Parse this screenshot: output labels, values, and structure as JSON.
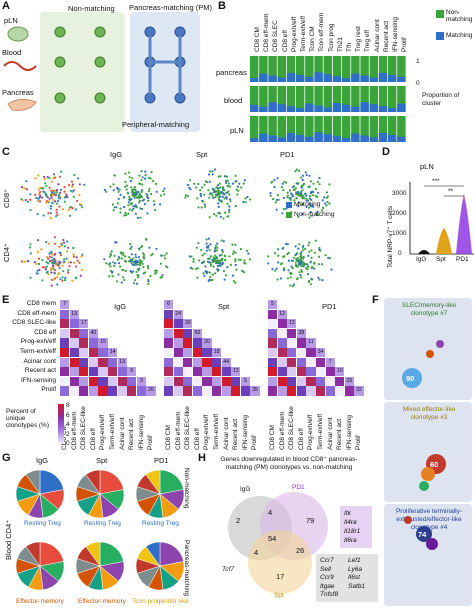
{
  "panels": {
    "A": {
      "letter": "A",
      "tissues": [
        "pLN",
        "Blood",
        "Pancreas"
      ],
      "groups": [
        "Non-matching",
        "Pancreas-matching (PM)",
        "Peripheral-matching"
      ]
    },
    "B": {
      "letter": "B",
      "columns": [
        "CD8 CM",
        "CD8 eff-mem",
        "CD8 SLEC",
        "CD8 eff",
        "Prog-exh/eff",
        "Term-exh/eff",
        "Tcon CM",
        "Tcon eff-mem",
        "Tcon prog",
        "Th21",
        "Tfh",
        "Treg rest",
        "Treg eff",
        "Acinar cont",
        "Recent act",
        "IFN-sensing",
        "Prolif"
      ],
      "rows": [
        "pancreas",
        "blood",
        "pLN"
      ],
      "legend": [
        "Non-matching",
        "Matching"
      ],
      "axis_label": "Proportion of cluster",
      "ticks": [
        "0",
        "1"
      ],
      "colors": {
        "non_matching": "#3aa33a",
        "matching": "#2f6fc8"
      }
    },
    "C": {
      "letter": "C",
      "rows": [
        "CD8⁺",
        "CD4⁺"
      ],
      "columns": [
        "IgG",
        "Spt",
        "PD1"
      ],
      "legend": [
        "Matching",
        "Non-matching"
      ]
    },
    "D": {
      "letter": "D",
      "title": "pLN",
      "ylabel": "Total NRP-v7⁺ T cells",
      "yticks": [
        "0",
        "1000",
        "2000",
        "3000"
      ],
      "groups": [
        "IgG",
        "Spt",
        "PD1"
      ],
      "sig": [
        "***",
        "**"
      ],
      "colors": [
        "#111111",
        "#e0a31a",
        "#8a2be2"
      ]
    },
    "E": {
      "letter": "E",
      "row_labels": [
        "CD8 mem",
        "CD8 eff-mem",
        "CD8 SLEC-like",
        "CD8 eff",
        "Prog-exh/eff",
        "Term-exh/eff",
        "Acinar cont",
        "Recent act",
        "IFN-sensing",
        "Prolif"
      ],
      "col_labels": [
        "CD8 CM",
        "CD8 eff-mem",
        "CD8 SLEC-like",
        "CD8 eff",
        "Prog-exh/eff",
        "Term-exh/eff",
        "Acinar cont",
        "Recent act",
        "IFN-sensing",
        "Prolif"
      ],
      "blocks": [
        {
          "title": "IgG",
          "diag": [
            "7",
            "13",
            "17",
            "40",
            "15",
            "14",
            "13",
            "5",
            "3",
            "26"
          ]
        },
        {
          "title": "Spt",
          "diag": [
            "6",
            "24",
            "30",
            "50",
            "20",
            "18",
            "44",
            "13",
            "5",
            "35"
          ]
        },
        {
          "title": "PD1",
          "diag": [
            "5",
            "12",
            "13",
            "38",
            "11",
            "34",
            "7",
            "10",
            "25",
            "32"
          ]
        }
      ],
      "legend_title": "Percent of unique clonotypes (%)",
      "legend_ticks": [
        "0",
        "2",
        "4",
        "6",
        "8"
      ]
    },
    "F": {
      "letter": "F",
      "titles": [
        "SLEC/memory-like clonotype #7",
        "Mixed effector-like clonotype #3",
        "Proliferative terminally-exhausted/effector-like clonotype #4"
      ],
      "big_values": [
        "90",
        "60",
        "74"
      ]
    },
    "G": {
      "letter": "G",
      "columns": [
        "IgG",
        "Spt",
        "PD1"
      ],
      "row_label": "Blood CD4⁺",
      "side_labels": [
        "Non-matching",
        "Pancreas-matching"
      ],
      "top_labels": [
        "Resting Treg",
        "Resting Treg",
        "Resting Treg"
      ],
      "bottom_labels": [
        "Effector-memory",
        "Effector-memory",
        "Tcon progenitor-like"
      ]
    },
    "H": {
      "letter": "H",
      "title": "Genes downregulated in blood CD8⁺ pancreas-matching (PM) clonotypes vs. non-matching",
      "sets": [
        "IgG",
        "PD1",
        "Spt"
      ],
      "counts": [
        "2",
        "79",
        "17",
        "4",
        "54",
        "26",
        "4"
      ],
      "pd1_genes": [
        "Itk",
        "Il4ra",
        "Il18r1",
        "Il6ra"
      ],
      "spt_gene": "Tcf7",
      "shared_genes_a": [
        "Ccr7",
        "Sell",
        "Ccr9",
        "Itgae",
        "Tnfsf8"
      ],
      "shared_genes_b": [
        "Lef1",
        "Ly6a",
        "Il6st",
        "Satb1"
      ]
    }
  }
}
